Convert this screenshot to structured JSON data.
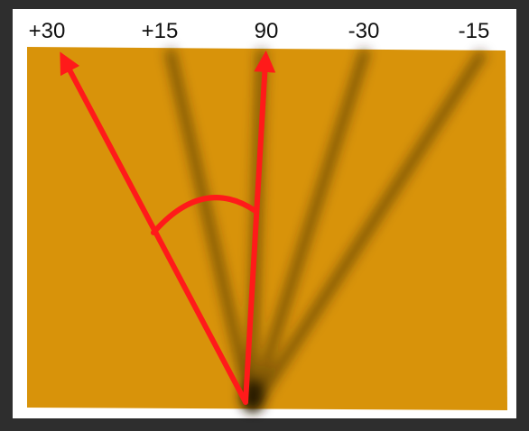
{
  "labels": [
    "+30",
    "+15",
    "90",
    "-30",
    "-15"
  ]
}
